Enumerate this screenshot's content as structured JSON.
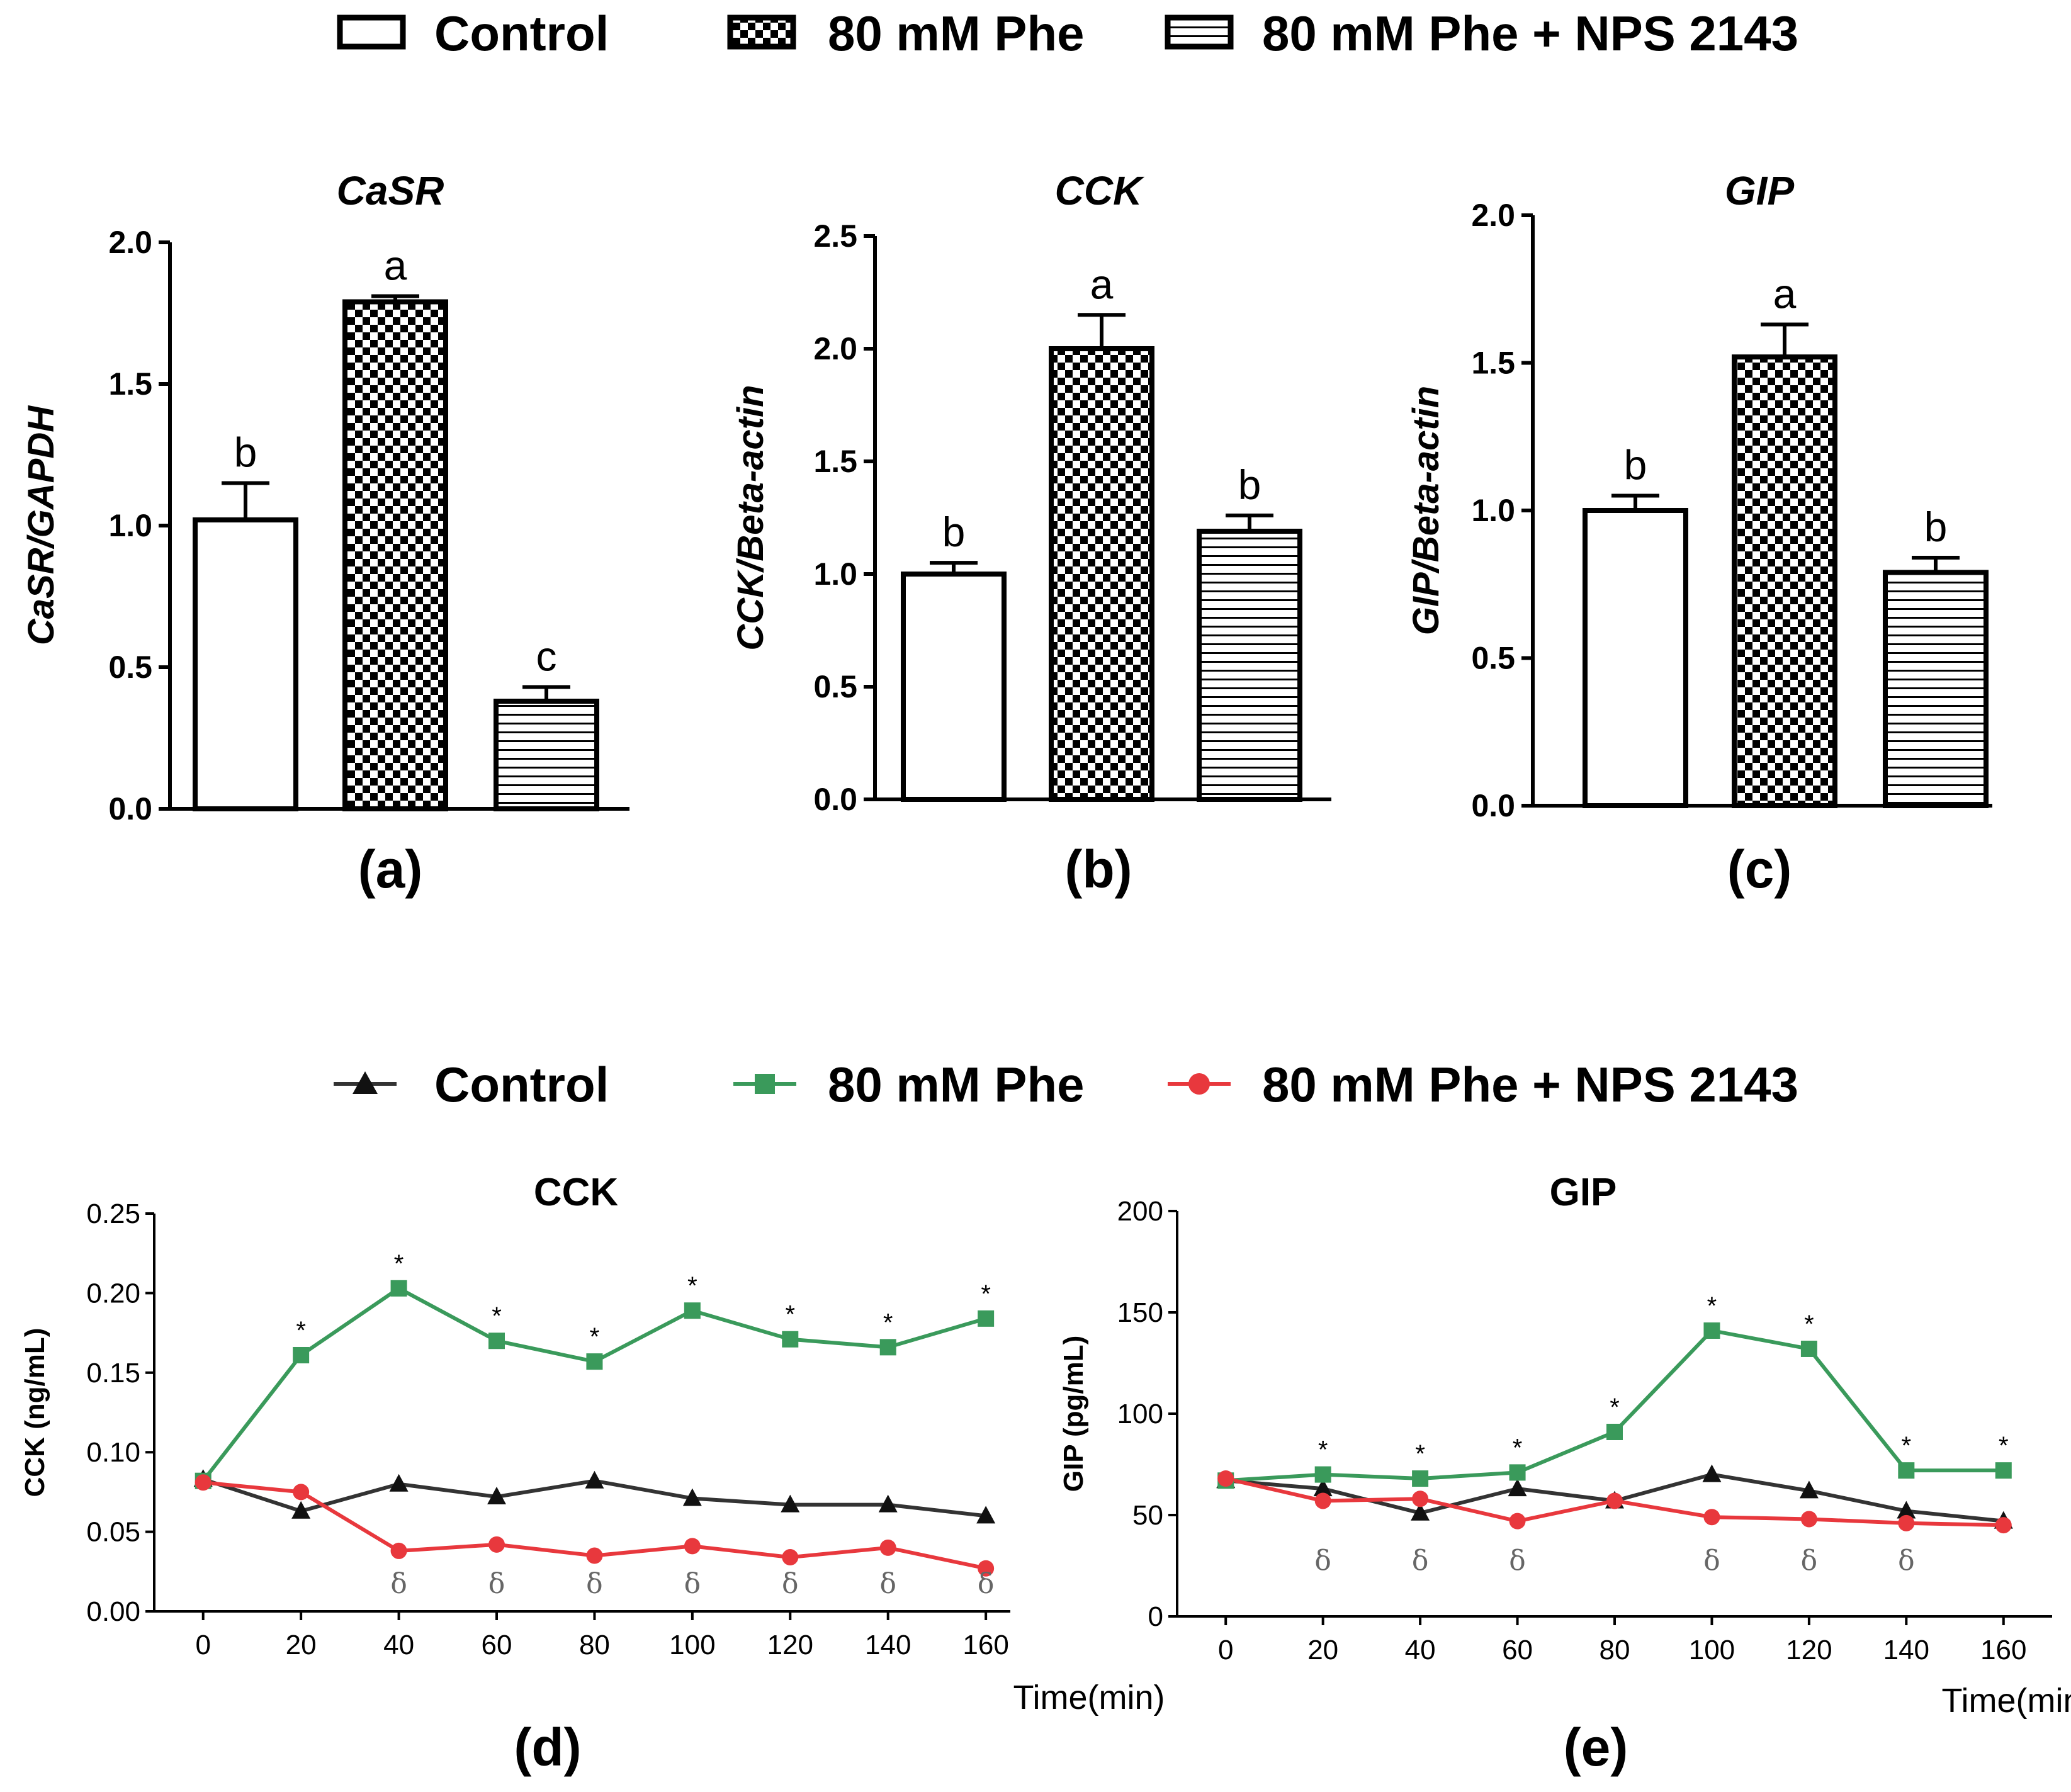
{
  "bar_legend": [
    "Control",
    "80 mM Phe",
    "80 mM Phe + NPS 2143"
  ],
  "line_legend": [
    "Control",
    "80 mM Phe",
    "80 mM Phe + NPS 2143"
  ],
  "colors": {
    "control_line": "#333333",
    "phe_line": "#3a9a5b",
    "nps_line": "#e8383d",
    "delta": "#666666"
  },
  "chart_data": [
    {
      "type": "bar",
      "panel": "(a)",
      "title": "CaSR",
      "ylabel": "CaSR/GAPDH",
      "ylim": [
        0,
        2.0
      ],
      "yticks": [
        "0.0",
        "0.5",
        "1.0",
        "1.5",
        "2.0"
      ],
      "categories": [
        "Control",
        "80 mM Phe",
        "80 mM Phe + NPS 2143"
      ],
      "values": [
        1.02,
        1.79,
        0.38
      ],
      "errors": [
        0.13,
        0.02,
        0.05
      ],
      "letters": [
        "b",
        "a",
        "c"
      ]
    },
    {
      "type": "bar",
      "panel": "(b)",
      "title": "CCK",
      "ylabel": "CCK/Beta-actin",
      "ylim": [
        0,
        2.5
      ],
      "yticks": [
        "0.0",
        "0.5",
        "1.0",
        "1.5",
        "2.0",
        "2.5"
      ],
      "categories": [
        "Control",
        "80 mM Phe",
        "80 mM Phe + NPS 2143"
      ],
      "values": [
        1.0,
        2.0,
        1.19
      ],
      "errors": [
        0.05,
        0.15,
        0.07
      ],
      "letters": [
        "b",
        "a",
        "b"
      ]
    },
    {
      "type": "bar",
      "panel": "(c)",
      "title": "GIP",
      "ylabel": "GIP/Beta-actin",
      "ylim": [
        0,
        2.0
      ],
      "yticks": [
        "0.0",
        "0.5",
        "1.0",
        "1.5",
        "2.0"
      ],
      "categories": [
        "Control",
        "80 mM Phe",
        "80 mM Phe + NPS 2143"
      ],
      "values": [
        1.0,
        1.52,
        0.79
      ],
      "errors": [
        0.05,
        0.11,
        0.05
      ],
      "letters": [
        "b",
        "a",
        "b"
      ]
    },
    {
      "type": "line",
      "panel": "(d)",
      "title": "CCK",
      "ylabel": "CCK (ng/mL)",
      "xlabel": "Time(min)",
      "ylim": [
        0,
        0.25
      ],
      "yticks": [
        "0.00",
        "0.05",
        "0.10",
        "0.15",
        "0.20",
        "0.25"
      ],
      "xlim": [
        -10,
        165
      ],
      "xticks": [
        "0",
        "20",
        "40",
        "60",
        "80",
        "100",
        "120",
        "140",
        "160"
      ],
      "x": [
        0,
        20,
        40,
        60,
        80,
        100,
        120,
        140,
        160
      ],
      "series": [
        {
          "name": "Control",
          "values": [
            0.083,
            0.063,
            0.08,
            0.072,
            0.082,
            0.071,
            0.067,
            0.067,
            0.06
          ]
        },
        {
          "name": "80 mM Phe",
          "values": [
            0.082,
            0.161,
            0.203,
            0.17,
            0.157,
            0.189,
            0.171,
            0.166,
            0.184
          ]
        },
        {
          "name": "80 mM Phe + NPS 2143",
          "values": [
            0.081,
            0.075,
            0.038,
            0.042,
            0.035,
            0.041,
            0.034,
            0.04,
            0.027
          ]
        }
      ],
      "star_marks": [
        "*",
        "*",
        "*",
        "*",
        "*",
        "*",
        "*",
        "*"
      ],
      "delta_marks": [
        "δ",
        "δ",
        "δ",
        "δ",
        "δ",
        "δ",
        "δ"
      ]
    },
    {
      "type": "line",
      "panel": "(e)",
      "title": "GIP",
      "ylabel": "GIP (pg/mL)",
      "xlabel": "Time(min)",
      "ylim": [
        0,
        200
      ],
      "yticks": [
        "0",
        "50",
        "100",
        "150",
        "200"
      ],
      "xlim": [
        -10,
        170
      ],
      "xticks": [
        "0",
        "20",
        "40",
        "60",
        "80",
        "100",
        "120",
        "140",
        "160"
      ],
      "x": [
        0,
        20,
        40,
        60,
        80,
        100,
        120,
        140,
        160
      ],
      "series": [
        {
          "name": "Control",
          "values": [
            67,
            63,
            51,
            63,
            57,
            70,
            62,
            52,
            47
          ]
        },
        {
          "name": "80 mM Phe",
          "values": [
            67,
            70,
            68,
            71,
            91,
            141,
            132,
            72,
            72
          ]
        },
        {
          "name": "80 mM Phe + NPS 2143",
          "values": [
            68,
            57,
            58,
            47,
            57,
            49,
            48,
            46,
            45
          ]
        }
      ],
      "star_marks": [
        "*",
        "*",
        "*",
        "*",
        "*",
        "*",
        "*",
        "*"
      ],
      "delta_marks": [
        "δ",
        "δ",
        "δ",
        "δ",
        "δ",
        "δ"
      ]
    }
  ]
}
